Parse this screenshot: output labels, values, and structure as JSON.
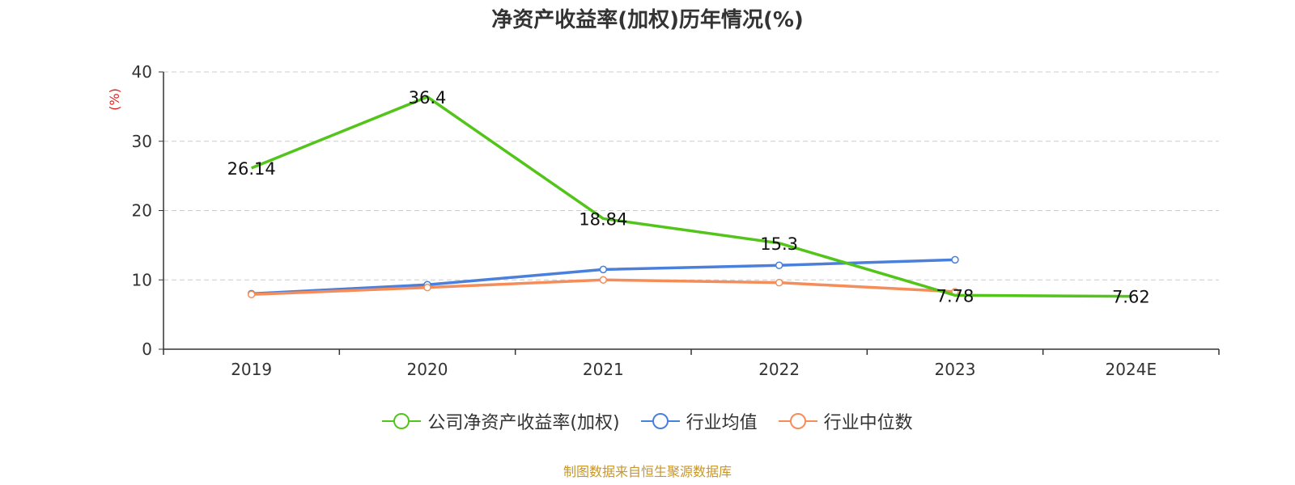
{
  "chart_data": {
    "type": "line",
    "title": "净资产收益率(加权)历年情况(%)",
    "ylabel": "(%)",
    "xlabel": "",
    "categories": [
      "2019",
      "2020",
      "2021",
      "2022",
      "2023",
      "2024E"
    ],
    "ylim": [
      0,
      40
    ],
    "yticks": [
      0,
      10,
      20,
      30,
      40
    ],
    "grid": true,
    "legend_position": "bottom",
    "series": [
      {
        "name": "公司净资产收益率(加权)",
        "color": "#52c41a",
        "values": [
          26.14,
          36.4,
          18.84,
          15.3,
          7.78,
          7.62
        ],
        "labels": [
          "26.14",
          "36.4",
          "18.84",
          "15.3",
          "7.78",
          "7.62"
        ],
        "show_markers": false
      },
      {
        "name": "行业均值",
        "color": "#4a7fdc",
        "values": [
          8.0,
          9.3,
          11.5,
          12.1,
          12.9,
          null
        ],
        "show_markers": true
      },
      {
        "name": "行业中位数",
        "color": "#f58d5b",
        "values": [
          7.9,
          8.9,
          10.0,
          9.6,
          8.3,
          null
        ],
        "show_markers": true
      }
    ]
  },
  "source_note": "制图数据来自恒生聚源数据库"
}
